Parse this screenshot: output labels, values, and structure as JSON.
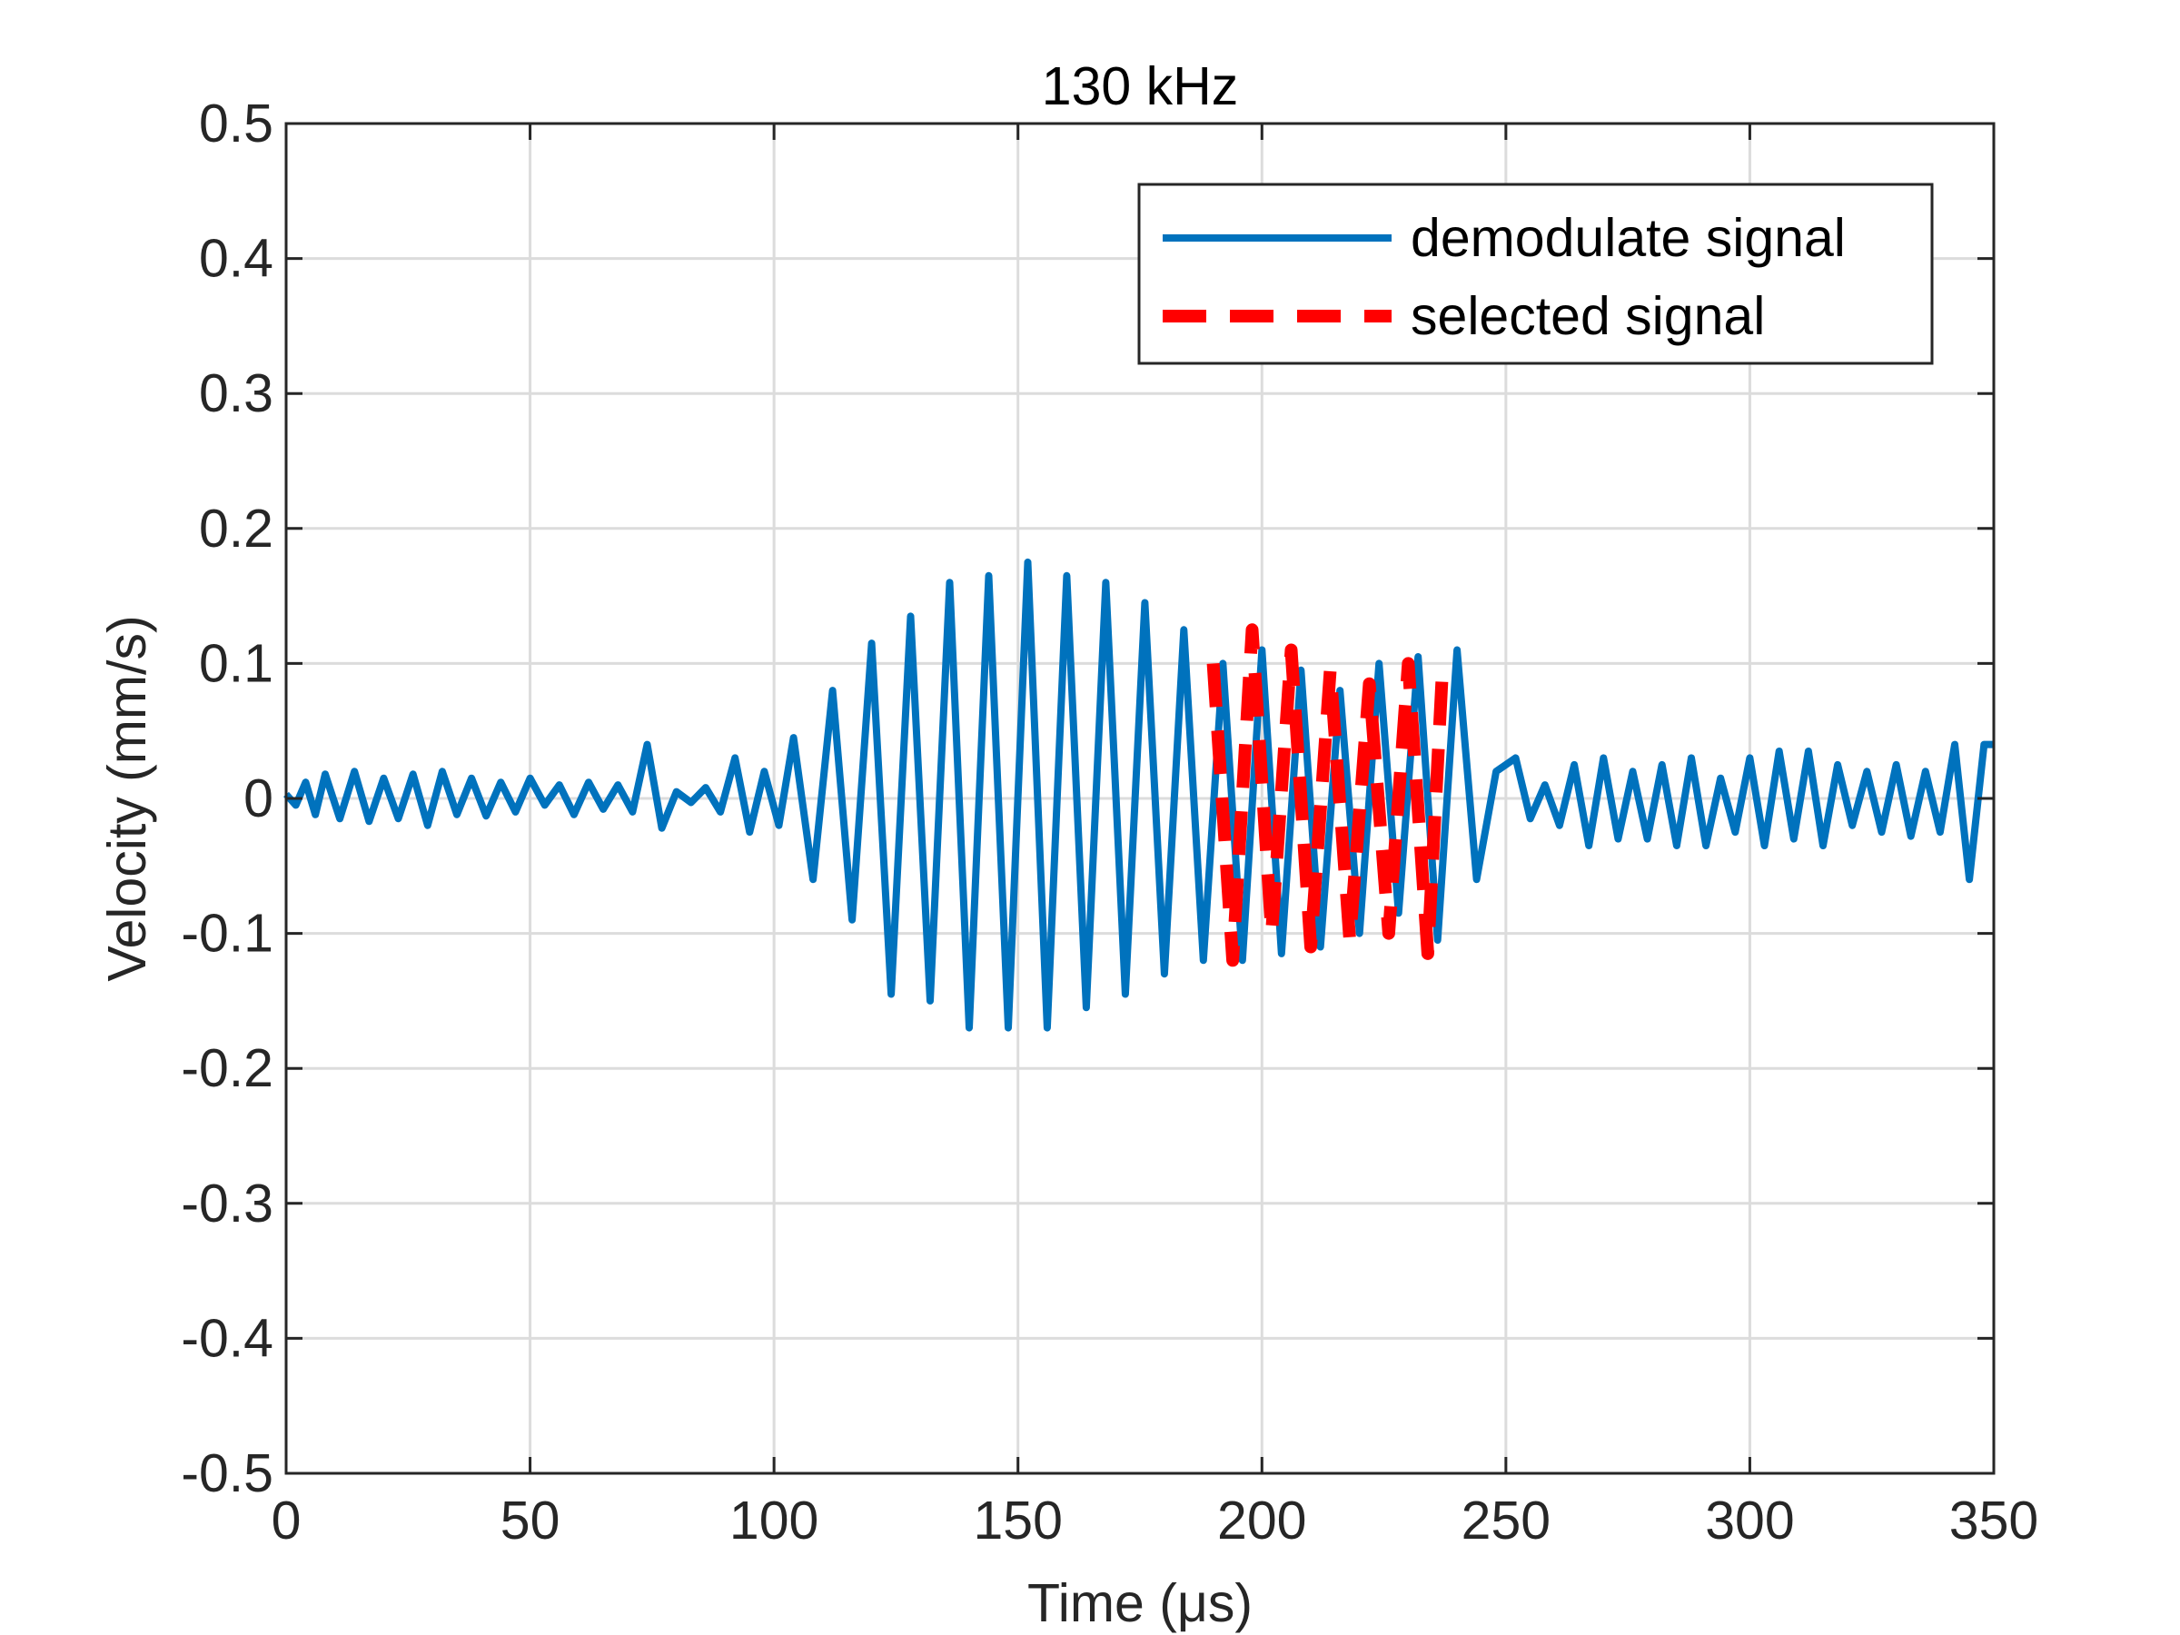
{
  "chart_data": {
    "type": "line",
    "title": "130 kHz",
    "xlabel": "Time (μs)",
    "ylabel": "Velocity (mm/s)",
    "xlim": [
      0,
      350
    ],
    "ylim": [
      -0.5,
      0.5
    ],
    "xticks": [
      0,
      50,
      100,
      150,
      200,
      250,
      300,
      350
    ],
    "xtick_labels": [
      "0",
      "50",
      "100",
      "150",
      "200",
      "250",
      "300",
      "350"
    ],
    "yticks": [
      0.5,
      0.4,
      0.3,
      0.2,
      0.1,
      0,
      -0.1,
      -0.2,
      -0.3,
      -0.4,
      -0.5
    ],
    "ytick_labels": [
      "0.5",
      "0.4",
      "0.3",
      "0.2",
      "0.1",
      "0",
      "-0.1",
      "-0.2",
      "-0.3",
      "-0.4",
      "-0.5"
    ],
    "grid": true,
    "legend_position": "top-right",
    "series": [
      {
        "name": "demodulate signal",
        "color": "#0072BD",
        "style": "solid",
        "x": [
          0,
          2,
          4,
          6,
          8,
          11,
          14,
          17,
          20,
          23,
          26,
          29,
          32,
          35,
          38,
          41,
          44,
          47,
          50,
          53,
          56,
          59,
          62,
          65,
          68,
          71,
          74,
          77,
          80,
          83,
          86,
          89,
          92,
          95,
          98,
          101,
          104,
          108,
          112,
          116,
          120,
          124,
          128,
          132,
          136,
          140,
          144,
          148,
          152,
          156,
          160,
          164,
          168,
          172,
          176,
          180,
          184,
          188,
          192,
          196,
          200,
          204,
          208,
          212,
          216,
          220,
          224,
          228,
          232,
          236,
          240,
          244,
          248,
          252,
          255,
          258,
          261,
          264,
          267,
          270,
          273,
          276,
          279,
          282,
          285,
          288,
          291,
          294,
          297,
          300,
          303,
          306,
          309,
          312,
          315,
          318,
          321,
          324,
          327,
          330,
          333,
          336,
          339,
          342,
          345,
          348,
          350
        ],
        "y": [
          0.003,
          -0.005,
          0.012,
          -0.012,
          0.018,
          -0.015,
          0.02,
          -0.017,
          0.015,
          -0.015,
          0.018,
          -0.02,
          0.02,
          -0.012,
          0.015,
          -0.013,
          0.012,
          -0.01,
          0.015,
          -0.005,
          0.01,
          -0.012,
          0.012,
          -0.008,
          0.01,
          -0.01,
          0.04,
          -0.022,
          0.005,
          -0.003,
          0.008,
          -0.01,
          0.03,
          -0.025,
          0.02,
          -0.02,
          0.045,
          -0.06,
          0.08,
          -0.09,
          0.115,
          -0.145,
          0.135,
          -0.15,
          0.16,
          -0.17,
          0.165,
          -0.17,
          0.175,
          -0.17,
          0.165,
          -0.155,
          0.16,
          -0.145,
          0.145,
          -0.13,
          0.125,
          -0.12,
          0.1,
          -0.12,
          0.11,
          -0.115,
          0.095,
          -0.11,
          0.08,
          -0.1,
          0.1,
          -0.085,
          0.105,
          -0.105,
          0.11,
          -0.06,
          0.02,
          0.03,
          -0.015,
          0.01,
          -0.02,
          0.025,
          -0.035,
          0.03,
          -0.03,
          0.02,
          -0.03,
          0.025,
          -0.035,
          0.03,
          -0.035,
          0.015,
          -0.025,
          0.03,
          -0.035,
          0.035,
          -0.03,
          0.035,
          -0.035,
          0.025,
          -0.02,
          0.02,
          -0.025,
          0.025,
          -0.028,
          0.02,
          -0.025,
          0.04,
          -0.06,
          0.04,
          0.04
        ]
      },
      {
        "name": "selected signal",
        "color": "#FF0000",
        "style": "dashed",
        "x": [
          190,
          194,
          198,
          202,
          206,
          210,
          214,
          218,
          222,
          226,
          230,
          234,
          237
        ],
        "y": [
          0.1,
          -0.12,
          0.125,
          -0.1,
          0.11,
          -0.11,
          0.095,
          -0.105,
          0.085,
          -0.1,
          0.1,
          -0.115,
          0.095
        ]
      }
    ]
  }
}
